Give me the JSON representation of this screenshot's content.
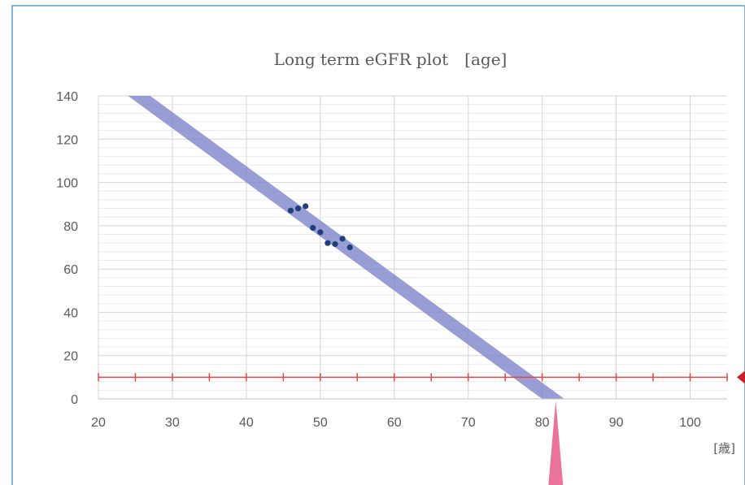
{
  "chart_data": {
    "type": "scatter",
    "title": "Long term eGFR plot　[age]",
    "x_unit_label": "[歳]",
    "xlim": [
      20,
      105
    ],
    "ylim": [
      0,
      140
    ],
    "x_ticks": [
      20,
      30,
      40,
      50,
      60,
      70,
      80,
      90,
      100
    ],
    "y_ticks": [
      0,
      20,
      40,
      60,
      80,
      100,
      120,
      140
    ],
    "grid": true,
    "series": [
      {
        "points": [
          {
            "x": 46,
            "y": 87
          },
          {
            "x": 47,
            "y": 88
          },
          {
            "x": 48,
            "y": 89
          },
          {
            "x": 49,
            "y": 79
          },
          {
            "x": 50,
            "y": 77
          },
          {
            "x": 51,
            "y": 72
          },
          {
            "x": 52,
            "y": 71.5
          },
          {
            "x": 53,
            "y": 74
          },
          {
            "x": 54,
            "y": 70
          }
        ],
        "color": "#1f3f7a"
      }
    ],
    "trend_band": {
      "start": {
        "x": 25.5,
        "y": 140
      },
      "end": {
        "x": 81.5,
        "y": 0
      },
      "half_width_x": 1.5,
      "color": "#7b82c9"
    },
    "reference_line": {
      "y": 10,
      "tick_xs": [
        20,
        25,
        30,
        35,
        40,
        45,
        50,
        55,
        60,
        65,
        70,
        75,
        80,
        85,
        90,
        95,
        100,
        105
      ],
      "color": "#e04848"
    },
    "frame_color": "#5b9bd5",
    "callout_arrow_color": "#e9739a",
    "marker_color": "#cc1f2a"
  }
}
